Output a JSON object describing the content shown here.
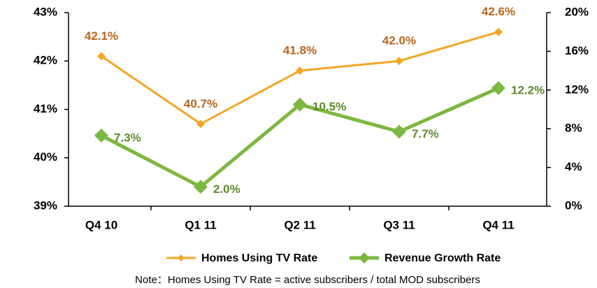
{
  "chart_data": {
    "type": "line",
    "categories": [
      "Q4 10",
      "Q1 11",
      "Q2 11",
      "Q3 11",
      "Q4 11"
    ],
    "series": [
      {
        "name": "Homes Using TV Rate",
        "color": "#f5a623",
        "label_color": "#b8651b",
        "values": [
          42.1,
          40.7,
          41.8,
          42.0,
          42.6
        ],
        "value_labels": [
          "42.1%",
          "40.7%",
          "41.8%",
          "42.0%",
          "42.6%"
        ]
      },
      {
        "name": "Revenue Growth Rate",
        "color": "#7cb840",
        "label_color": "#5e8a2c",
        "axis": "y2",
        "values": [
          7.3,
          2.0,
          10.5,
          7.7,
          12.2
        ],
        "value_labels": [
          "7.3%",
          "2.0%",
          "10.5%",
          "7.7%",
          "12.2%"
        ]
      }
    ],
    "ylim": [
      39,
      43
    ],
    "yticks": [
      {
        "value": 39,
        "label": "39%"
      },
      {
        "value": 40,
        "label": "40%"
      },
      {
        "value": 41,
        "label": "41%"
      },
      {
        "value": 42,
        "label": "42%"
      },
      {
        "value": 43,
        "label": "43%"
      }
    ],
    "y2lim": [
      0,
      20
    ],
    "y2ticks": [
      {
        "value": 0,
        "label": "0%"
      },
      {
        "value": 4,
        "label": "4%"
      },
      {
        "value": 8,
        "label": "8%"
      },
      {
        "value": 12,
        "label": "12%"
      },
      {
        "value": 16,
        "label": "16%"
      },
      {
        "value": 20,
        "label": "20%"
      }
    ],
    "grid": false,
    "legend": "bottom",
    "note": "Note：Homes Using TV Rate =  active subscribers /  total MOD subscribers"
  }
}
